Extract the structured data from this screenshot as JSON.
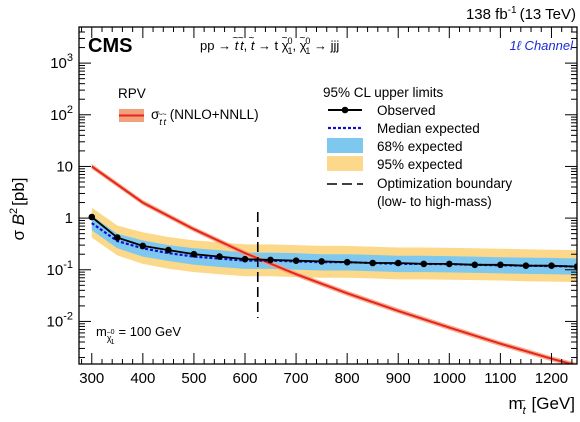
{
  "header": {
    "lumi": "138 fb",
    "lumi_exp": "-1",
    "energy": "(13 TeV)"
  },
  "cms_label": "CMS",
  "process": {
    "lhs": "pp → ",
    "rhs": " → jjj"
  },
  "channel": "1ℓ Channel",
  "theory_box": {
    "title": "RPV",
    "entry": "(NNLO+NNLL)"
  },
  "legend": {
    "title": "95% CL upper limits",
    "entries": [
      {
        "key": "observed",
        "label": "Observed"
      },
      {
        "key": "median",
        "label": "Median expected"
      },
      {
        "key": "band68",
        "label": "68% expected"
      },
      {
        "key": "band95",
        "label": "95% expected"
      },
      {
        "key": "boundary",
        "label": "Optimization boundary"
      },
      {
        "key": "boundary_note",
        "label": "(low- to high-mass)"
      }
    ]
  },
  "mass_note": "= 100 GeV",
  "colors": {
    "observed": "#000000",
    "median": "#1010cc",
    "band68": "#7ec8f0",
    "band95": "#fcd98a",
    "theory": "#e8231d",
    "theory_band": "#f2a07a",
    "channel": "#1a2ad6"
  },
  "chart_data": {
    "type": "line",
    "xlabel": "[GeV]",
    "ylabel": "[pb]",
    "xlim": [
      275,
      1250
    ],
    "ylim": [
      0.0015,
      5000
    ],
    "yscale": "log",
    "x_ticks": [
      300,
      400,
      500,
      600,
      700,
      800,
      900,
      1000,
      1100,
      1200
    ],
    "y_ticks": [
      {
        "value": 0.01,
        "base": "10",
        "exp": "-2"
      },
      {
        "value": 0.1,
        "base": "10",
        "exp": "-1"
      },
      {
        "value": 1,
        "base": "1",
        "exp": ""
      },
      {
        "value": 10,
        "base": "10",
        "exp": ""
      },
      {
        "value": 100,
        "base": "10",
        "exp": "2"
      },
      {
        "value": 1000,
        "base": "10",
        "exp": "3"
      }
    ],
    "optimization_boundary_x": 625,
    "series": [
      {
        "name": "Observed",
        "x": [
          300,
          350,
          400,
          450,
          500,
          550,
          600,
          650,
          700,
          750,
          800,
          850,
          900,
          950,
          1000,
          1050,
          1100,
          1150,
          1200,
          1250
        ],
        "y": [
          1.05,
          0.42,
          0.29,
          0.24,
          0.2,
          0.18,
          0.16,
          0.155,
          0.15,
          0.145,
          0.14,
          0.135,
          0.135,
          0.13,
          0.13,
          0.125,
          0.125,
          0.12,
          0.12,
          0.115
        ]
      },
      {
        "name": "Median expected",
        "x": [
          300,
          350,
          400,
          450,
          500,
          550,
          600,
          650,
          700,
          750,
          800,
          850,
          900,
          950,
          1000,
          1050,
          1100,
          1150,
          1200,
          1250
        ],
        "y": [
          0.8,
          0.36,
          0.26,
          0.21,
          0.18,
          0.165,
          0.15,
          0.15,
          0.145,
          0.14,
          0.14,
          0.135,
          0.13,
          0.13,
          0.128,
          0.125,
          0.122,
          0.12,
          0.118,
          0.115
        ]
      },
      {
        "name": "68% expected",
        "x": [
          300,
          350,
          400,
          450,
          500,
          550,
          600,
          650,
          700,
          750,
          800,
          850,
          900,
          950,
          1000,
          1050,
          1100,
          1150,
          1200,
          1250
        ],
        "low": [
          0.58,
          0.26,
          0.18,
          0.148,
          0.125,
          0.113,
          0.104,
          0.104,
          0.1,
          0.097,
          0.097,
          0.094,
          0.09,
          0.09,
          0.089,
          0.087,
          0.085,
          0.083,
          0.082,
          0.08
        ],
        "high": [
          1.12,
          0.5,
          0.37,
          0.3,
          0.26,
          0.24,
          0.215,
          0.215,
          0.21,
          0.2,
          0.2,
          0.194,
          0.187,
          0.187,
          0.184,
          0.18,
          0.175,
          0.172,
          0.17,
          0.165
        ]
      },
      {
        "name": "95% expected",
        "x": [
          300,
          350,
          400,
          450,
          500,
          550,
          600,
          650,
          700,
          750,
          800,
          850,
          900,
          950,
          1000,
          1050,
          1100,
          1150,
          1200,
          1250
        ],
        "low": [
          0.42,
          0.19,
          0.13,
          0.105,
          0.09,
          0.082,
          0.075,
          0.075,
          0.072,
          0.07,
          0.07,
          0.068,
          0.065,
          0.065,
          0.064,
          0.063,
          0.062,
          0.06,
          0.059,
          0.058
        ],
        "high": [
          1.6,
          0.72,
          0.53,
          0.43,
          0.37,
          0.34,
          0.31,
          0.31,
          0.3,
          0.29,
          0.29,
          0.28,
          0.27,
          0.27,
          0.265,
          0.26,
          0.255,
          0.25,
          0.245,
          0.24
        ]
      },
      {
        "name": "σ(NNLO+NNLL)",
        "x": [
          300,
          400,
          500,
          600,
          700,
          800,
          900,
          1000,
          1100,
          1200,
          1250
        ],
        "y": [
          10.0,
          2.0,
          0.61,
          0.21,
          0.082,
          0.035,
          0.016,
          0.0076,
          0.0037,
          0.0019,
          0.0014
        ]
      }
    ]
  }
}
